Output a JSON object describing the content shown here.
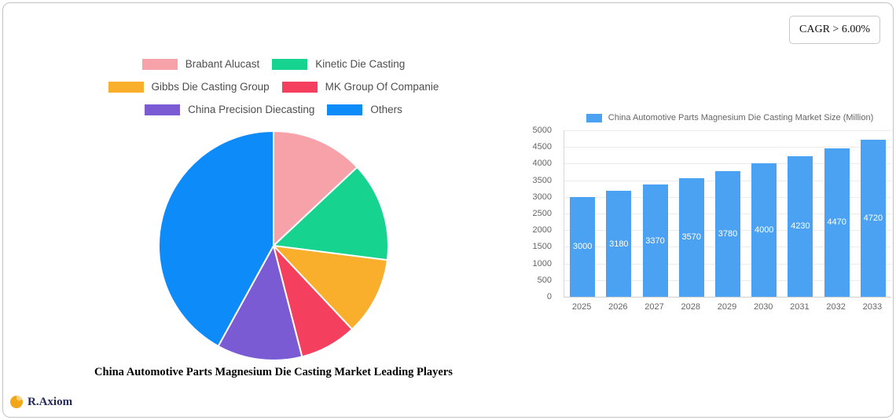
{
  "overlays": {
    "cagr_badge": "CAGR > 6.00%",
    "brand": "R.Axiom"
  },
  "chart_data": [
    {
      "type": "pie",
      "title": "China Automotive Parts Magnesium Die Casting Market Leading Players",
      "legend_position": "top",
      "direction": "clockwise",
      "start_angle_deg": 0,
      "labels": [
        "Brabant Alucast",
        "Kinetic Die Casting",
        "Gibbs Die Casting Group",
        "MK Group Of Companie",
        "China Precision Diecasting",
        "Others"
      ],
      "values_pct": [
        13,
        14,
        11,
        8,
        12,
        42
      ],
      "colors": [
        "#f7a2a9",
        "#16d38f",
        "#f9ae2c",
        "#f43f5e",
        "#7a5bd4",
        "#0d8bf9"
      ]
    },
    {
      "type": "bar",
      "title": "China Automotive Parts Magnesium Die Casting Market Size (Million)",
      "categories": [
        "2025",
        "2026",
        "2027",
        "2028",
        "2029",
        "2030",
        "2031",
        "2032",
        "2033"
      ],
      "values": [
        3000,
        3180,
        3370,
        3570,
        3780,
        4000,
        4230,
        4470,
        4720
      ],
      "bar_color": "#4ba2f2",
      "value_label_color": "#ffffff",
      "ylim": [
        0,
        5000
      ],
      "ytick_step": 500,
      "grid": true,
      "legend_position": "top"
    }
  ]
}
